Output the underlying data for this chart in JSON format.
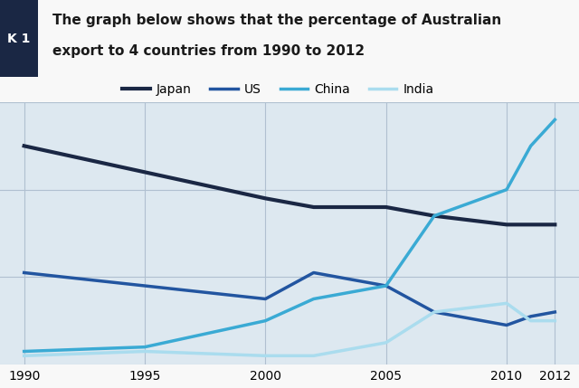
{
  "title_line1": "The graph below shows that the percentage of Australian",
  "title_line2": "export to 4 countries from 1990 to 2012",
  "label_tag": "K 1",
  "years": [
    1990,
    1995,
    2000,
    2002,
    2005,
    2007,
    2010,
    2011,
    2012
  ],
  "japan": [
    25,
    22,
    19,
    18,
    18,
    17,
    16,
    16,
    16
  ],
  "us": [
    10.5,
    9,
    7.5,
    10.5,
    9,
    6,
    4.5,
    5.5,
    6
  ],
  "china": [
    1.5,
    2,
    5,
    7.5,
    9,
    17,
    20,
    25,
    28
  ],
  "india": [
    1,
    1.5,
    1,
    1,
    2.5,
    6,
    7,
    5,
    5
  ],
  "japan_color": "#1a2744",
  "us_color": "#2255a0",
  "china_color": "#3aaad4",
  "india_color": "#aadcee",
  "grid_color": "#b0c0d0",
  "bg_color": "#f8f8f8",
  "plot_bg_color": "#dde8f0",
  "xlim": [
    1989,
    2013
  ],
  "ylim": [
    0,
    30
  ],
  "yticks": [
    0,
    10,
    20,
    30
  ],
  "xticks": [
    1990,
    1995,
    2000,
    2005,
    2010,
    2012
  ],
  "legend_labels": [
    "Japan",
    "US",
    "China",
    "India"
  ],
  "linewidth": 2.5,
  "title_fontsize": 11,
  "legend_fontsize": 10,
  "tick_fontsize": 10,
  "tag_bg": "#1a2744",
  "tag_text": "K 1",
  "tag_text_color": "#ffffff"
}
